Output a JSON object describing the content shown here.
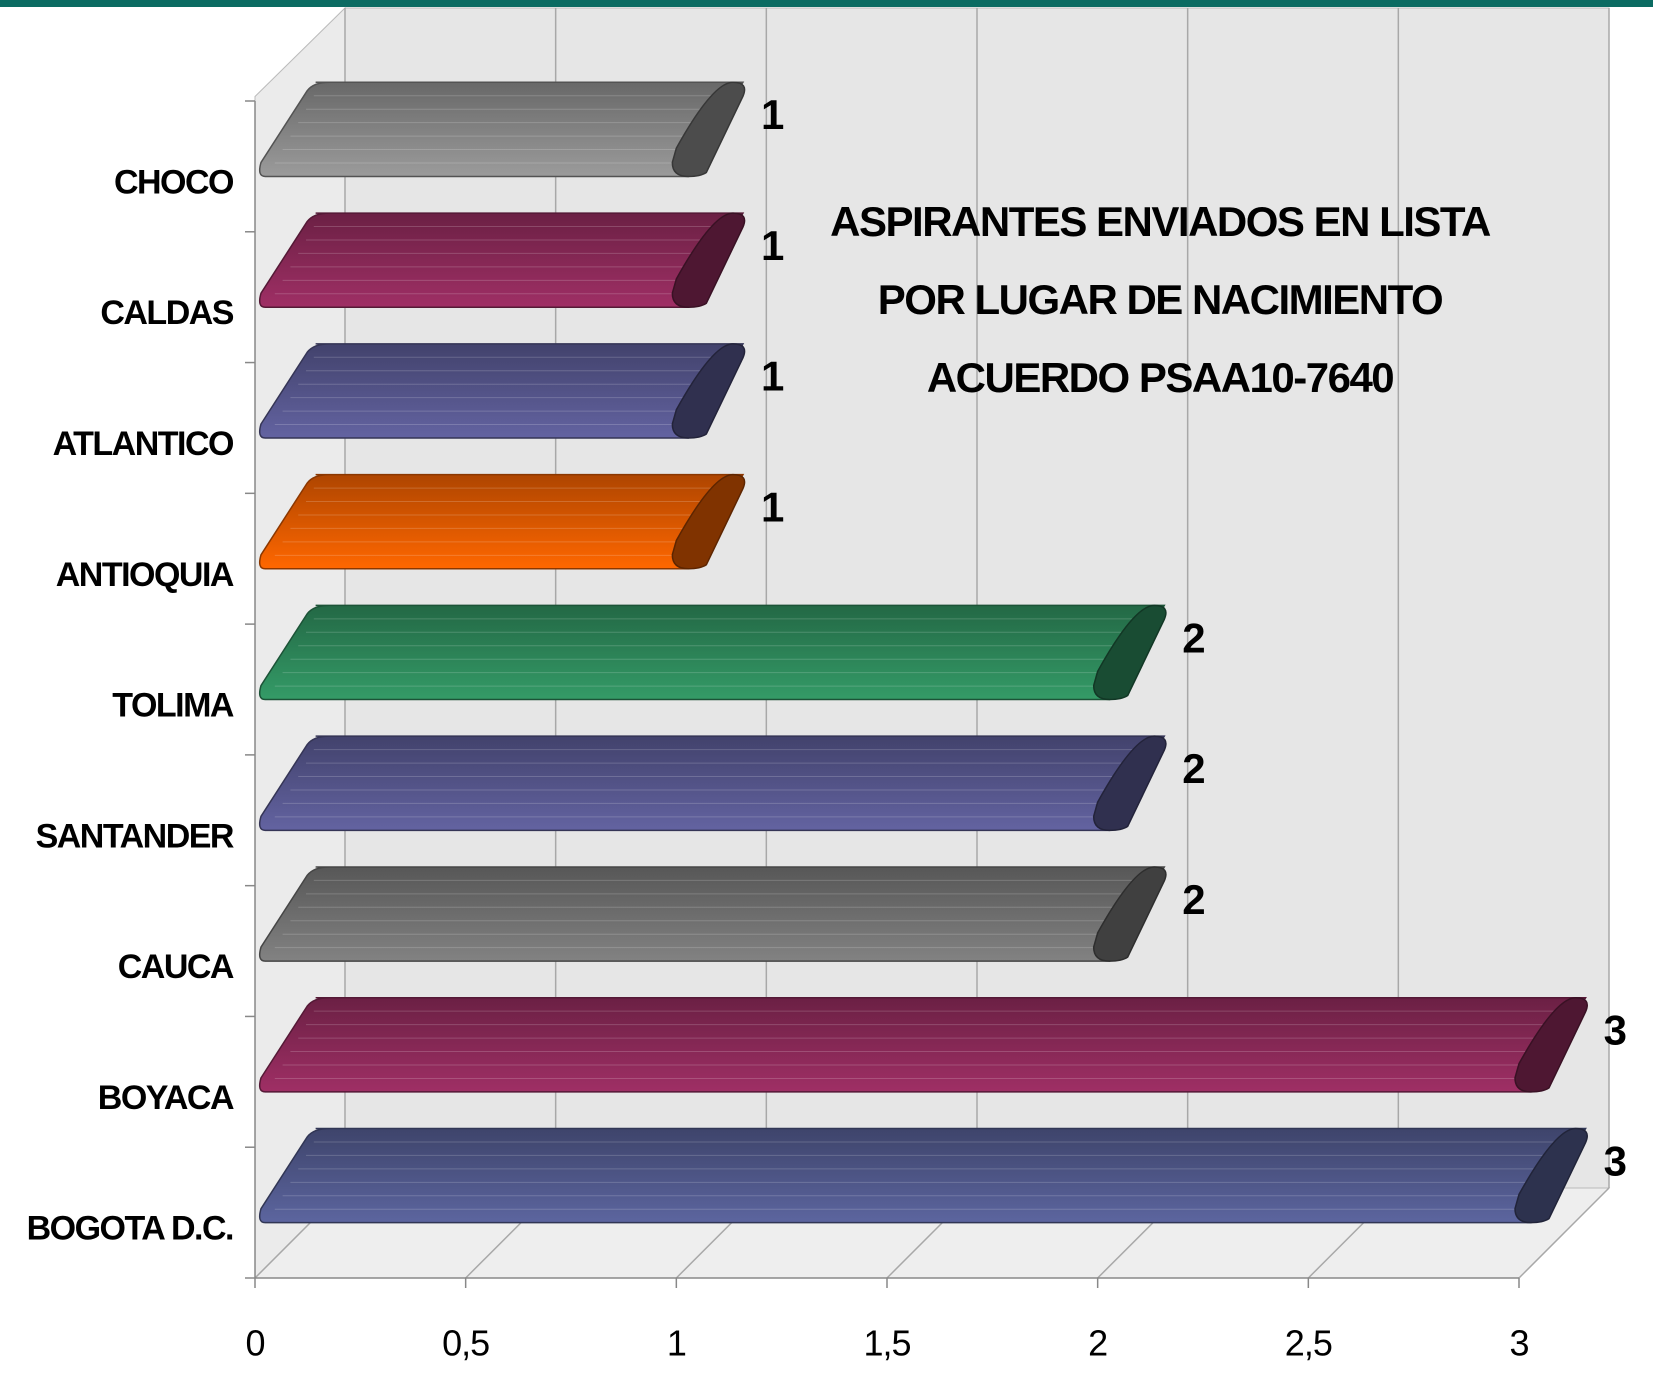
{
  "chart_data": {
    "type": "bar",
    "orientation": "horizontal",
    "three_d": true,
    "title": [
      "ASPIRANTES ENVIADOS EN LISTA",
      "POR LUGAR DE NACIMIENTO",
      "ACUERDO PSAA10-7640"
    ],
    "categories": [
      "CHOCO",
      "CALDAS",
      "ATLANTICO",
      "ANTIOQUIA",
      "TOLIMA",
      "SANTANDER",
      "CAUCA",
      "BOYACA",
      "BOGOTA D.C."
    ],
    "values": [
      1,
      1,
      1,
      1,
      2,
      2,
      2,
      3,
      3
    ],
    "colors": [
      "#8a8a8a",
      "#8e2a5a",
      "#585890",
      "#e85c00",
      "#2e8a5c",
      "#585890",
      "#747474",
      "#8e2a5a",
      "#525a8e"
    ],
    "xlim": [
      0,
      3
    ],
    "xticks": [
      0,
      {
        "value": 0.5,
        "label": "0,5"
      },
      1,
      {
        "value": 1.5,
        "label": "1,5"
      },
      2,
      {
        "value": 2.5,
        "label": "2,5"
      },
      3
    ],
    "grid": true
  }
}
